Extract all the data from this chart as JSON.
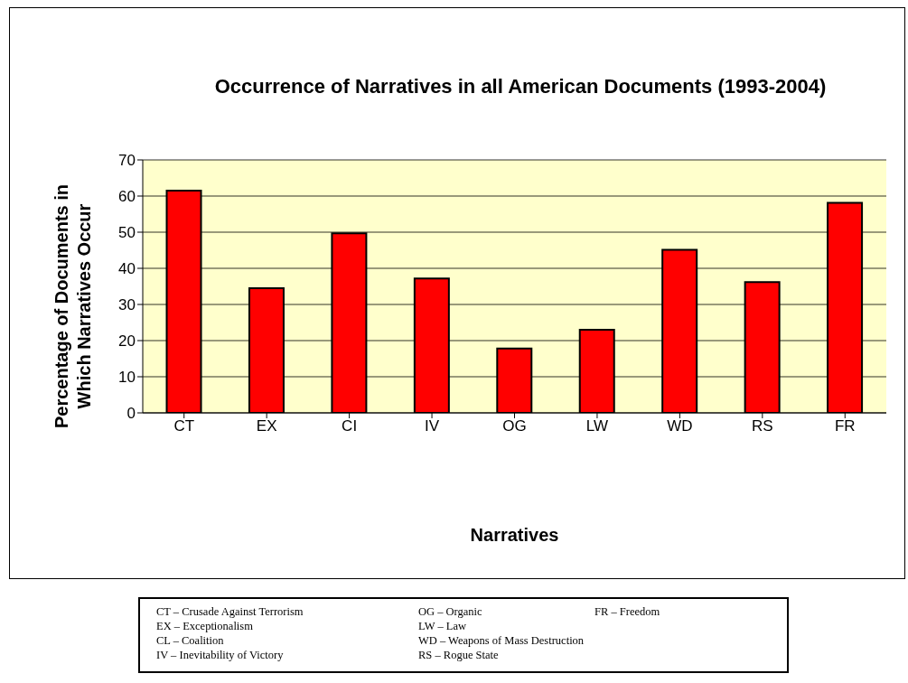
{
  "chart_data": {
    "type": "bar",
    "title": "Occurrence of Narratives in all American Documents (1993-2004)",
    "xlabel": "Narratives",
    "ylabel": "Percentage of Documents in Which Narratives Occur",
    "categories": [
      "CT",
      "EX",
      "CI",
      "IV",
      "OG",
      "LW",
      "WD",
      "RS",
      "FR"
    ],
    "values": [
      61.5,
      34.5,
      49.7,
      37.2,
      17.8,
      23.0,
      45.1,
      36.2,
      58.1
    ],
    "color": "#ff0000",
    "ylim": [
      0,
      70
    ],
    "yticks": [
      0,
      10,
      20,
      30,
      40,
      50,
      60,
      70
    ],
    "grid": "y",
    "legend": false,
    "annotations": [
      "CT – Crusade Against Terrorism",
      "EX – Exceptionalism",
      "CL – Coalition",
      "IV – Inevitability of Victory",
      "OG – Organic",
      "LW – Law",
      "WD – Weapons of Mass Destruction",
      "RS – Rogue State",
      "FR – Freedom"
    ]
  }
}
